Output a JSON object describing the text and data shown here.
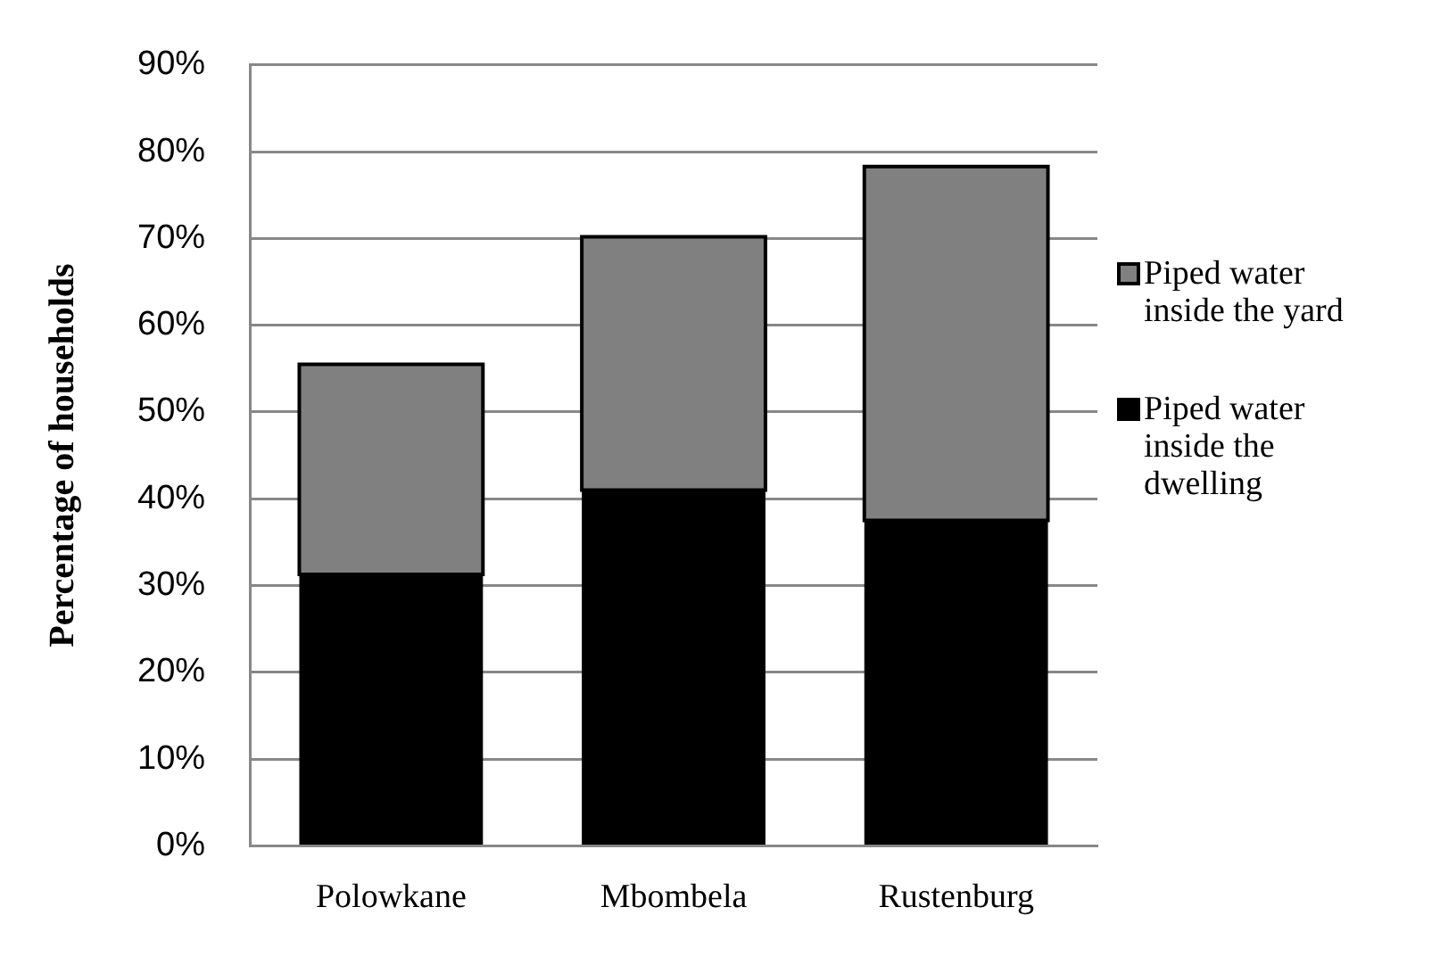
{
  "chart_data": {
    "type": "bar",
    "stacked": true,
    "ylabel": "Percentage of households",
    "categories": [
      "Polowkane",
      "Mbombela",
      "Rustenburg"
    ],
    "series": [
      {
        "name": "Piped water inside the dwelling",
        "color": "#000000",
        "values": [
          31.3,
          41,
          37.5
        ]
      },
      {
        "name": "Piped water inside the yard",
        "color": "#808080",
        "values": [
          24.2,
          29.2,
          40.8
        ]
      }
    ],
    "ylim": [
      0,
      90
    ],
    "yticks": [
      {
        "value": 0,
        "label": "0%"
      },
      {
        "value": 10,
        "label": "10%"
      },
      {
        "value": 20,
        "label": "20%"
      },
      {
        "value": 30,
        "label": "30%"
      },
      {
        "value": 40,
        "label": "40%"
      },
      {
        "value": 50,
        "label": "50%"
      },
      {
        "value": 60,
        "label": "60%"
      },
      {
        "value": 70,
        "label": "70%"
      },
      {
        "value": 80,
        "label": "80%"
      },
      {
        "value": 90,
        "label": "90%"
      }
    ],
    "grid": "y",
    "legend": "right"
  }
}
